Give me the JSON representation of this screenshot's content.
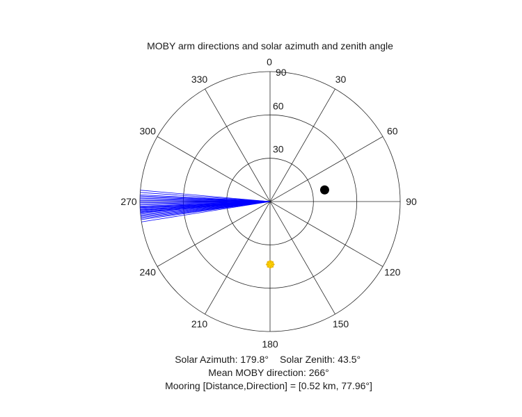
{
  "chart_data": {
    "type": "polar",
    "title": "MOBY arm directions and solar azimuth and zenith angle",
    "angular_axis": {
      "zero_direction": "top",
      "rotation": "clockwise",
      "tick_labels": [
        "0",
        "30",
        "60",
        "90",
        "120",
        "150",
        "180",
        "210",
        "240",
        "270",
        "300",
        "330"
      ]
    },
    "radial_axis": {
      "range": [
        0,
        90
      ],
      "rings": [
        30,
        60,
        90
      ],
      "tick_labels": [
        "30",
        "60",
        "90"
      ]
    },
    "series": [
      {
        "marker": "blue lines",
        "color": "#0000ff",
        "angle_deg": [
          261,
          262,
          262.5,
          263,
          263.5,
          264,
          264.5,
          265,
          265.3,
          265.6,
          266,
          266.3,
          266.6,
          267,
          267.3,
          267.6,
          268,
          268.5,
          269,
          269.5,
          270,
          270.5,
          271,
          271.5,
          272,
          272.5,
          273,
          274,
          275
        ],
        "radius": 90
      },
      {
        "marker": "black filled circle",
        "color": "#000000",
        "angle_deg": 77.96,
        "radius": 38.6
      },
      {
        "marker": "yellow sun",
        "color": "#ffd400",
        "angle_deg": 179.8,
        "radius": 43.5
      }
    ],
    "annotations": [
      "Solar Azimuth: 179.8° Solar Zenith: 43.5°",
      "Mean MOBY direction: 266°",
      "Mooring [Distance,Direction] = [0.52 km, 77.96°]"
    ]
  },
  "captions": {
    "line1a": "Solar Azimuth: 179.8°",
    "line1b": "Solar Zenith: 43.5°",
    "line2": "Mean MOBY direction: 266°",
    "line3": "Mooring [Distance,Direction] = [0.52 km, 77.96°]"
  }
}
